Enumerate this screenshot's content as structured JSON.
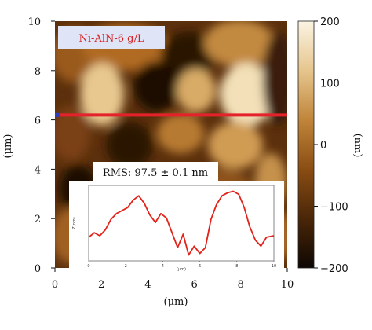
{
  "chart_data": {
    "type": "heatmap",
    "sample_label": "Ni-AlN-6 g/L",
    "rms_label": "RMS: 97.5 ± 0.1 nm",
    "xlabel": "(μm)",
    "ylabel": "(μm)",
    "x_ticks": [
      "0",
      "2",
      "4",
      "6",
      "8",
      "10"
    ],
    "y_ticks": [
      "0",
      "2",
      "4",
      "6",
      "8",
      "10"
    ],
    "xlim": [
      0,
      10
    ],
    "ylim": [
      0,
      10
    ],
    "colorbar": {
      "label": "(nm)",
      "ticks": [
        "200",
        "100",
        "0",
        "−100",
        "−200"
      ],
      "range": [
        -200,
        200
      ],
      "colors": [
        "#0e0703",
        "#4a2608",
        "#8a4d13",
        "#c0853a",
        "#e6c58d",
        "#fbf4e4"
      ]
    },
    "scan_line": {
      "y": 6.2,
      "color": "#e5222b"
    },
    "profile": {
      "xlabel": "(μm)",
      "ylabel": "Z(nm)",
      "x_ticks": [
        "0",
        "2",
        "4",
        "6",
        "8",
        "10"
      ],
      "xlim": [
        0,
        10
      ],
      "ylim": [
        -250,
        260
      ],
      "line_color": "#e2231a",
      "x": [
        0,
        0.3,
        0.6,
        0.9,
        1.2,
        1.5,
        1.8,
        2.1,
        2.4,
        2.7,
        3.0,
        3.3,
        3.6,
        3.9,
        4.2,
        4.5,
        4.8,
        5.1,
        5.4,
        5.7,
        6.0,
        6.3,
        6.6,
        6.9,
        7.2,
        7.5,
        7.8,
        8.1,
        8.4,
        8.7,
        9.0,
        9.3,
        9.6,
        10.0
      ],
      "y": [
        -90,
        -60,
        -80,
        -40,
        30,
        70,
        90,
        110,
        160,
        190,
        140,
        60,
        10,
        70,
        40,
        -60,
        -160,
        -70,
        -210,
        -150,
        -200,
        -160,
        30,
        130,
        190,
        210,
        220,
        200,
        110,
        -20,
        -110,
        -150,
        -90,
        -80
      ]
    }
  }
}
